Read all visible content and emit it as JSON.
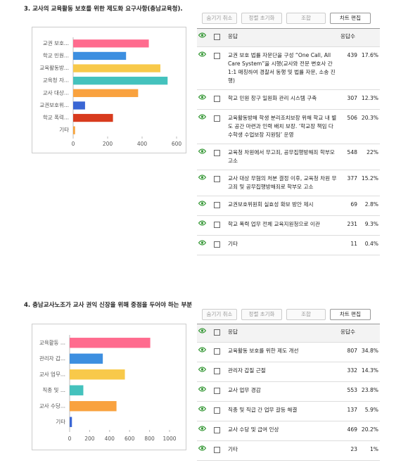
{
  "chart_data": [
    {
      "type": "hbar",
      "categories": [
        "교권 보호...",
        "학교 민원...",
        "교육활동방...",
        "교육청 자...",
        "교사 대상...",
        "교권보호위...",
        "학교 폭력...",
        "기타"
      ],
      "values": [
        439,
        307,
        506,
        548,
        377,
        69,
        231,
        11
      ],
      "colors": [
        "#ff6b8e",
        "#3d8fe0",
        "#f8c94a",
        "#44c2bd",
        "#f9a23f",
        "#3a66d4",
        "#d83b1e",
        "#f7a33a"
      ],
      "xlim": [
        0,
        600
      ],
      "xticks": [
        0,
        200,
        400,
        600
      ],
      "grid": false
    },
    {
      "type": "hbar",
      "categories": [
        "교육활동 ...",
        "관리자 갑...",
        "교사 업무...",
        "직종 및 ...",
        "교사 수당...",
        "기타"
      ],
      "values": [
        807,
        332,
        553,
        137,
        469,
        23
      ],
      "colors": [
        "#ff6b8e",
        "#3d8fe0",
        "#f8c94a",
        "#44c2bd",
        "#f9a23f",
        "#3a66d4"
      ],
      "xlim": [
        0,
        1000
      ],
      "xticks": [
        0,
        200,
        400,
        600,
        800,
        1000
      ],
      "grid": false
    }
  ],
  "sections": [
    {
      "title": "3. 교사의 교육활동 보호를 위한 제도화 요구사항(충남교육청).",
      "buttons": [
        "숨기기 취소",
        "정렬 초기화",
        "조합",
        "차트 편집"
      ],
      "table": {
        "headers": [
          "응답",
          "응답수"
        ],
        "rows": [
          [
            "교권 보호 법률 자문단을 구성 “One Call, All Care System”을 시행(교사와 전문 변호사 간 1:1 매칭하여 경찰서 동행 및 법률 자문, 소송 진행)",
            439,
            "17.6%"
          ],
          [
            "학교 민원 창구 일원화 관리 시스템 구축",
            307,
            "12.3%"
          ],
          [
            "교육활동방해 학생 분리조치보장 위해 학교 내 별도 공간 마련과 인력 배치 보장. ‘학교장 책임 다수학생 수업보장 지원팀’ 운영",
            506,
            "20.3%"
          ],
          [
            "교육청 차원에서 무고죄, 공무집행방해죄 학부모 고소",
            548,
            "22%"
          ],
          [
            "교사 대상 무혐의 처분 결정 이후, 교육청 차원 무고죄 및 공무집행방해죄로 학부모 고소",
            377,
            "15.2%"
          ],
          [
            "교권보호위원회 실효성 확보 방안 제시",
            69,
            "2.8%"
          ],
          [
            "학교 폭력 업무 전체 교육지원청으로 이관",
            231,
            "9.3%"
          ],
          [
            "기타",
            11,
            "0.4%"
          ]
        ]
      }
    },
    {
      "title": "4. 충남교사노조가 교사 권익 신장을 위해 중점을 두어야 하는 부분",
      "buttons": [
        "숨기기 취소",
        "정렬 초기화",
        "조합",
        "차트 편집"
      ],
      "table": {
        "headers": [
          "응답",
          "응답수"
        ],
        "rows": [
          [
            "교육활동 보호를 위한 제도 개선",
            807,
            "34.8%"
          ],
          [
            "관리자 갑질 근절",
            332,
            "14.3%"
          ],
          [
            "교사 업무 경감",
            553,
            "23.8%"
          ],
          [
            "직종 및 직급 간 업무 갈등 해결",
            137,
            "5.9%"
          ],
          [
            "교사 수당 및 급여 인상",
            469,
            "20.2%"
          ],
          [
            "기타",
            23,
            "1%"
          ]
        ]
      }
    }
  ]
}
